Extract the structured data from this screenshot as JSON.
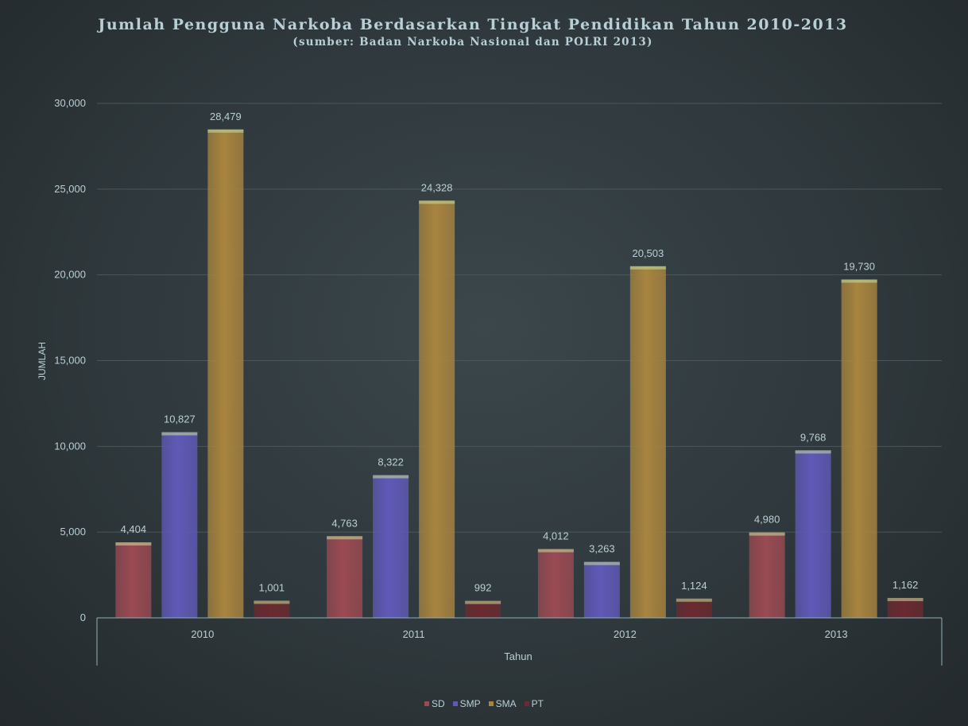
{
  "title": "Jumlah Pengguna Narkoba Berdasarkan Tingkat Pendidikan Tahun 2010-2013",
  "subtitle": "(sumber: Badan Narkoba Nasional dan POLRI 2013)",
  "chart_data": {
    "type": "bar",
    "title": "Jumlah Pengguna Narkoba Berdasarkan Tingkat Pendidikan Tahun 2010-2013",
    "subtitle": "(sumber: Badan Narkoba Nasional dan POLRI 2013)",
    "xlabel": "Tahun",
    "ylabel": "JUMLAH",
    "categories": [
      "2010",
      "2011",
      "2012",
      "2013"
    ],
    "series": [
      {
        "name": "SD",
        "color": "#9a4a52",
        "values": [
          4404,
          4763,
          4012,
          4980
        ],
        "labels": [
          "4,404",
          "4,763",
          "4,012",
          "4,980"
        ]
      },
      {
        "name": "SMP",
        "color": "#6059b8",
        "values": [
          10827,
          8322,
          3263,
          9768
        ],
        "labels": [
          "10,827",
          "8,322",
          "3,263",
          "9,768"
        ]
      },
      {
        "name": "SMA",
        "color": "#a8843f",
        "values": [
          28479,
          24328,
          20503,
          19730
        ],
        "labels": [
          "28,479",
          "24,328",
          "20,503",
          "19,730"
        ]
      },
      {
        "name": "PT",
        "color": "#6a2a30",
        "values": [
          1001,
          992,
          1124,
          1162
        ],
        "labels": [
          "1,001",
          "992",
          "1,124",
          "1,162"
        ]
      }
    ],
    "ylim": [
      0,
      30000
    ],
    "yticks": [
      0,
      5000,
      10000,
      15000,
      20000,
      25000,
      30000
    ],
    "ytick_labels": [
      "0",
      "5,000",
      "10,000",
      "15,000",
      "20,000",
      "25,000",
      "30,000"
    ],
    "grid": true,
    "legend_position": "bottom",
    "data_labels": true
  }
}
